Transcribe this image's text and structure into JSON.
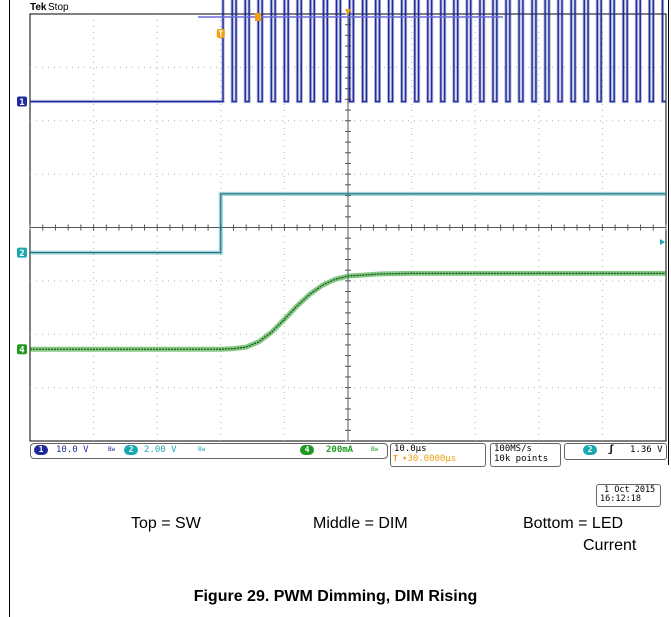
{
  "header": {
    "brand": "Tek",
    "status": "Stop"
  },
  "colors": {
    "ch1": "#1f2b9a",
    "ch2": "#1aa7b0",
    "ch4": "#1f9a1f",
    "grid": "#b0b0b0",
    "trigger": "#f0a010",
    "record_bar": "#6a6adc"
  },
  "channel_markers": [
    "1",
    "2",
    "4"
  ],
  "trigger_marker": "T",
  "status_bar": {
    "ch1": {
      "num": "1",
      "scale": "10.0 V",
      "bw": "Bw"
    },
    "ch2": {
      "num": "2",
      "scale": "2.00 V",
      "bw": "Bw"
    },
    "ch4": {
      "num": "4",
      "scale": "200mA",
      "bw": "Bw"
    },
    "horizontal": {
      "timebase": "10.0µs",
      "delay": "▾30.0000µs",
      "delay_icon": "T"
    },
    "acquisition": {
      "rate": "100MS/s",
      "points": "10k points"
    },
    "trigger": {
      "num": "2",
      "slope": "ʃ",
      "level": "1.36 V"
    }
  },
  "timestamp": {
    "date": "1 Oct  2015",
    "time": "16:12:18"
  },
  "captions": {
    "top": "Top = SW",
    "middle": "Middle = DIM",
    "bottom_line1": "Bottom = LED",
    "bottom_line2": "Current"
  },
  "figure_title": "Figure 29. PWM Dimming, DIM Rising",
  "chart_data": {
    "type": "line",
    "title": "",
    "x_unit": "µs",
    "x_divisions": 10,
    "y_divisions": 8,
    "xlim": [
      -30,
      70
    ],
    "trigger_time": 0,
    "grid": true,
    "series": [
      {
        "name": "",
        "channel": "1",
        "scale": "10.0 V/div",
        "kind": "pwm",
        "low_level_div": 2.36,
        "high_level_div": 4.56,
        "first_pulse_at": 0.35,
        "period": 2.05,
        "pulse_width": 1.45
      },
      {
        "name": "",
        "channel": "2",
        "scale": "2.00 V/div",
        "kind": "step",
        "low_level_div": -0.47,
        "high_level_div": 0.63,
        "step_at": 0
      },
      {
        "name": "",
        "channel": "4",
        "scale": "200mA/div",
        "kind": "rise",
        "x": [
          -30,
          0,
          2,
          4,
          6,
          8,
          10,
          12,
          14,
          16,
          18,
          20,
          25,
          30,
          40,
          50,
          70
        ],
        "y": [
          -2.28,
          -2.28,
          -2.27,
          -2.24,
          -2.14,
          -1.96,
          -1.72,
          -1.47,
          -1.25,
          -1.08,
          -0.97,
          -0.91,
          -0.87,
          -0.86,
          -0.86,
          -0.86,
          -0.86
        ]
      }
    ]
  }
}
